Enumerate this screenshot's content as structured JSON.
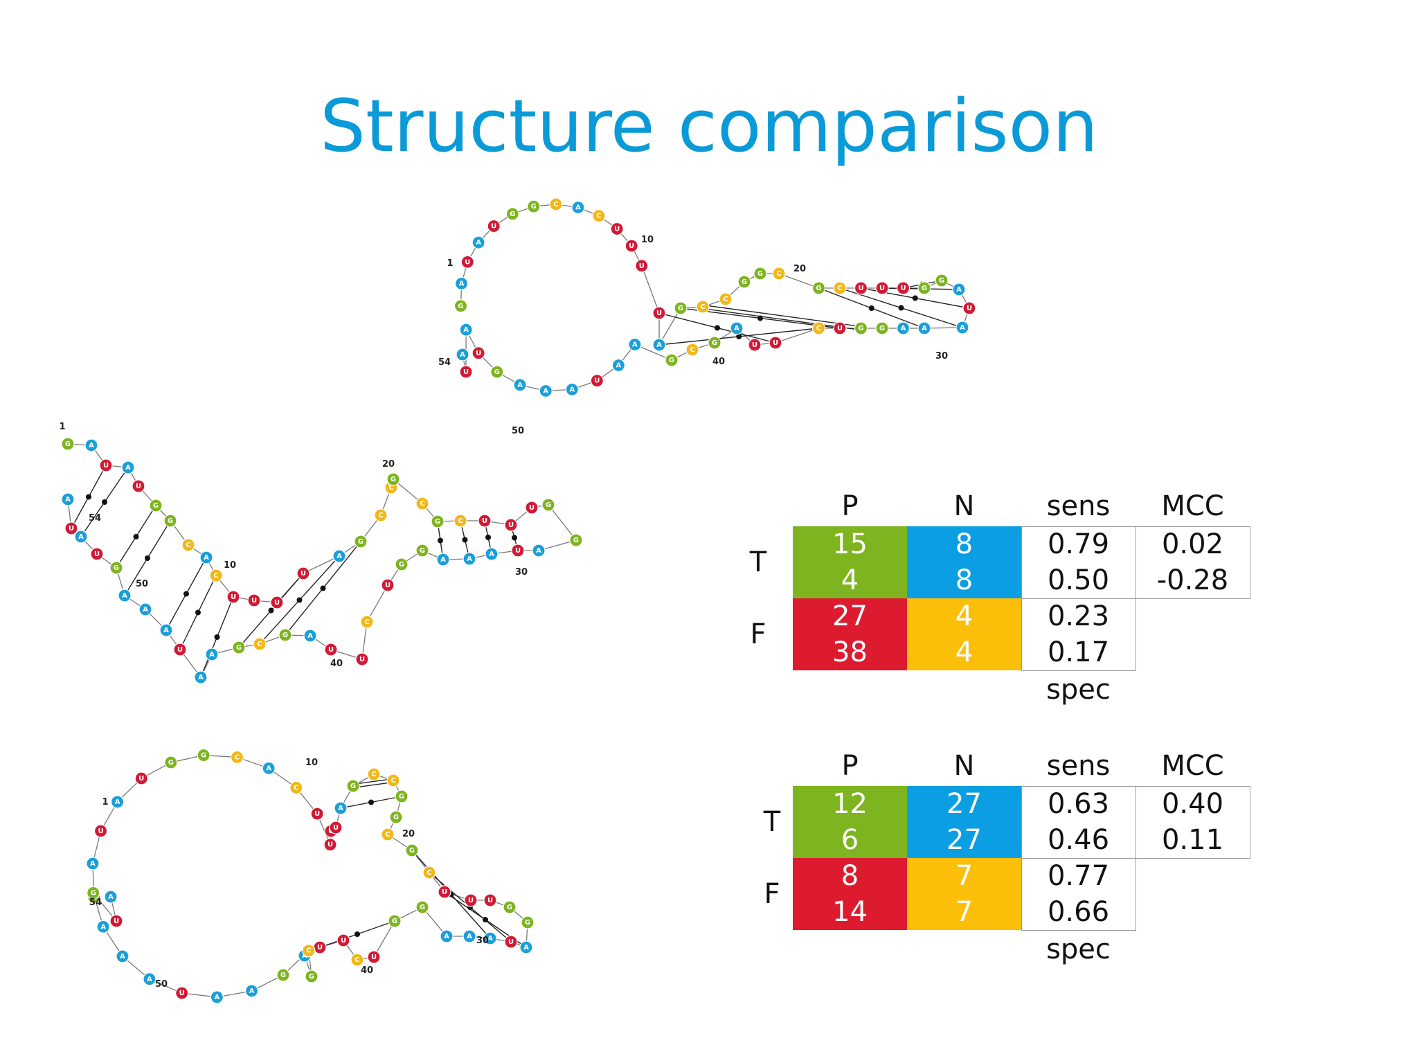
{
  "title": "Structure comparison",
  "nucleotide_colors": {
    "G": "#7db41f",
    "A": "#1b9fd8",
    "U": "#d01a36",
    "C": "#f0b81a"
  },
  "structures": [
    {
      "sequence": "GAUAUGGCACUUUUAGCCGGCGCUUUGGAUAAAGGUCUUAGCGAAUAAAGUAUA",
      "labels": [
        "1",
        "10",
        "20",
        "30",
        "40",
        "50",
        "54"
      ]
    },
    {
      "sequence": "GAUAUGGCACUUUUAGCCGGCGCUUUGGAUAAAGGUCUUAGCGAAUAAAGUAUA",
      "labels": [
        "1",
        "10",
        "20",
        "30",
        "40",
        "50",
        "54"
      ]
    },
    {
      "sequence": "GAUAUGGCACUUUUAGCCGGCGCUUUGGAUAAAGGUCUUAGCGAAUAAAGUAUA",
      "labels": [
        "1",
        "10",
        "20",
        "30",
        "40",
        "50",
        "54"
      ]
    }
  ],
  "tables": [
    {
      "col_headers": [
        "P",
        "N",
        "sens",
        "MCC"
      ],
      "row_labels": [
        "T",
        "F"
      ],
      "T_P": [
        "15",
        "4"
      ],
      "T_N": [
        "8",
        "8"
      ],
      "sens": [
        "0.79",
        "0.50"
      ],
      "MCC": [
        "0.02",
        "-0.28"
      ],
      "F_P": [
        "27",
        "38"
      ],
      "F_N": [
        "4",
        "4"
      ],
      "spec": [
        "0.23",
        "0.17"
      ],
      "spec_label": "spec"
    },
    {
      "col_headers": [
        "P",
        "N",
        "sens",
        "MCC"
      ],
      "row_labels": [
        "T",
        "F"
      ],
      "T_P": [
        "12",
        "6"
      ],
      "T_N": [
        "27",
        "27"
      ],
      "sens": [
        "0.63",
        "0.46"
      ],
      "MCC": [
        "0.40",
        "0.11"
      ],
      "F_P": [
        "8",
        "14"
      ],
      "F_N": [
        "7",
        "7"
      ],
      "spec": [
        "0.77",
        "0.66"
      ],
      "spec_label": "spec"
    }
  ]
}
